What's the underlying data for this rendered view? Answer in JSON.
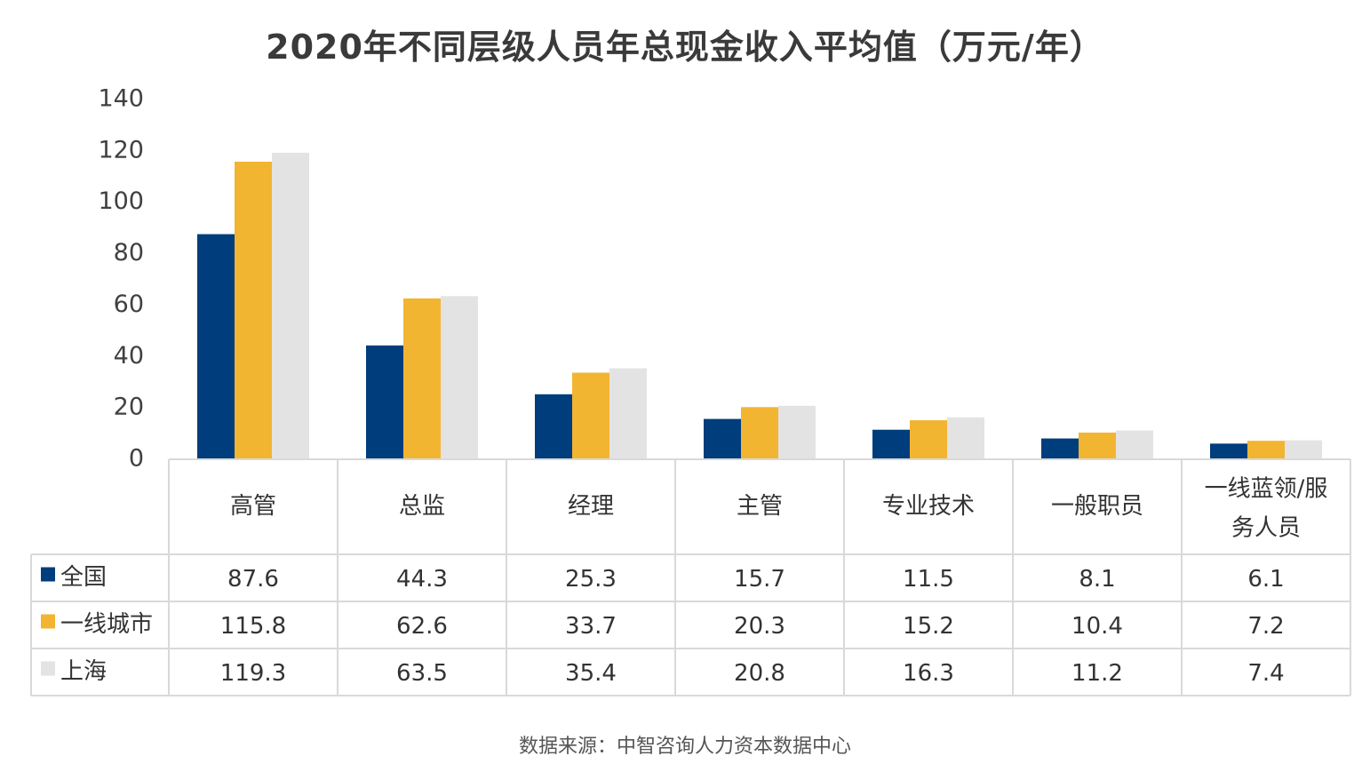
{
  "chart_data": {
    "type": "bar",
    "title": "2020年不同层级人员年总现金收入平均值（万元/年）",
    "categories": [
      "高管",
      "总监",
      "经理",
      "主管",
      "专业技术",
      "一般职员",
      "一线蓝领/服务人员"
    ],
    "series": [
      {
        "name": "全国",
        "color": "#003d7c",
        "values": [
          87.6,
          44.3,
          25.3,
          15.7,
          11.5,
          8.1,
          6.1
        ]
      },
      {
        "name": "一线城市",
        "color": "#f2b531",
        "values": [
          115.8,
          62.6,
          33.7,
          20.3,
          15.2,
          10.4,
          7.2
        ]
      },
      {
        "name": "上海",
        "color": "#e4e3e4",
        "values": [
          119.3,
          63.5,
          35.4,
          20.8,
          16.3,
          11.2,
          7.4
        ]
      }
    ],
    "ylim": [
      0,
      140
    ],
    "yticks": [
      0,
      20,
      40,
      60,
      80,
      100,
      120,
      140
    ],
    "xlabel": "",
    "ylabel": "",
    "grid": false,
    "legend": "in data table rows",
    "data_table": true
  },
  "source": "数据来源：中智咨询人力资本数据中心"
}
